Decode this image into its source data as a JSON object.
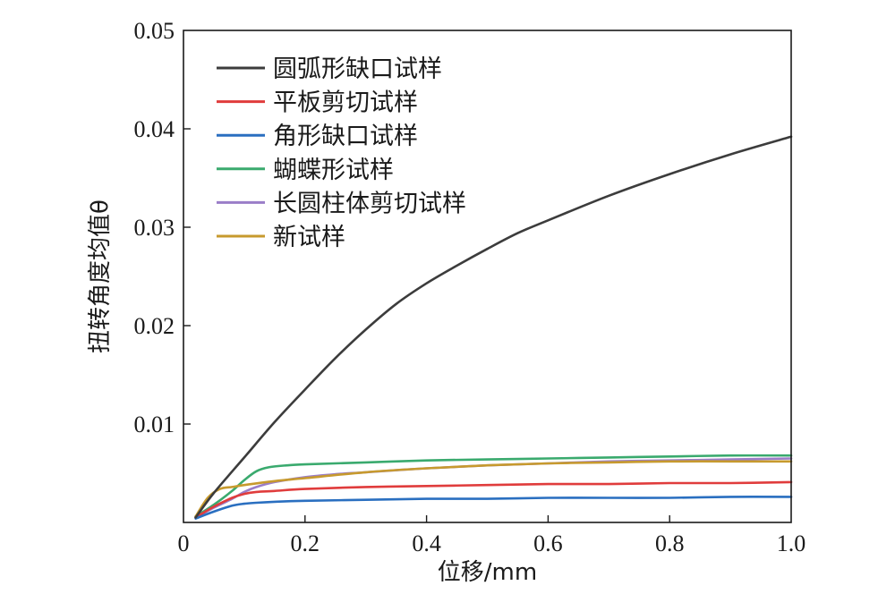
{
  "chart_data": {
    "type": "line",
    "title": "",
    "xlabel": "位移/mm",
    "ylabel": "扭转角度均值θ",
    "xlim": [
      0,
      1.0
    ],
    "ylim": [
      0,
      0.05
    ],
    "xticks": [
      0,
      0.2,
      0.4,
      0.6,
      0.8,
      1.0
    ],
    "xtick_labels": [
      "0",
      "0.2",
      "0.4",
      "0.6",
      "0.8",
      "1.0"
    ],
    "yticks": [
      0.01,
      0.02,
      0.03,
      0.04,
      0.05
    ],
    "ytick_labels": [
      "0.01",
      "0.02",
      "0.03",
      "0.04",
      "0.05"
    ],
    "grid": false,
    "legend_position": "top-left",
    "series": [
      {
        "name": "圆弧形缺口试样",
        "color": "#3c3c3c",
        "x": [
          0.02,
          0.05,
          0.1,
          0.15,
          0.2,
          0.25,
          0.3,
          0.35,
          0.4,
          0.45,
          0.5,
          0.55,
          0.6,
          0.7,
          0.8,
          0.9,
          1.0
        ],
        "y": [
          0.0005,
          0.003,
          0.0066,
          0.0102,
          0.0135,
          0.0167,
          0.0196,
          0.0222,
          0.0243,
          0.0261,
          0.0278,
          0.0294,
          0.0307,
          0.0332,
          0.0354,
          0.0374,
          0.0392
        ]
      },
      {
        "name": "平板剪切试样",
        "color": "#e03c3c",
        "x": [
          0.02,
          0.05,
          0.08,
          0.1,
          0.12,
          0.15,
          0.2,
          0.3,
          0.4,
          0.5,
          0.6,
          0.7,
          0.8,
          0.9,
          1.0
        ],
        "y": [
          0.0005,
          0.0016,
          0.0025,
          0.0029,
          0.0031,
          0.0032,
          0.0034,
          0.0036,
          0.0037,
          0.0038,
          0.0039,
          0.0039,
          0.004,
          0.004,
          0.0041
        ]
      },
      {
        "name": "角形缺口试样",
        "color": "#2a6fc0",
        "x": [
          0.02,
          0.05,
          0.08,
          0.1,
          0.12,
          0.15,
          0.2,
          0.3,
          0.4,
          0.5,
          0.6,
          0.7,
          0.8,
          0.9,
          1.0
        ],
        "y": [
          0.0004,
          0.0011,
          0.0017,
          0.0019,
          0.002,
          0.0021,
          0.0022,
          0.0023,
          0.0024,
          0.0024,
          0.0025,
          0.0025,
          0.0025,
          0.0026,
          0.0026
        ]
      },
      {
        "name": "蝴蝶形试样",
        "color": "#3aaa6e",
        "x": [
          0.02,
          0.05,
          0.08,
          0.1,
          0.12,
          0.14,
          0.17,
          0.2,
          0.3,
          0.4,
          0.5,
          0.6,
          0.7,
          0.8,
          0.9,
          1.0
        ],
        "y": [
          0.0006,
          0.0018,
          0.0032,
          0.0043,
          0.0052,
          0.0056,
          0.0058,
          0.0059,
          0.0061,
          0.0063,
          0.0064,
          0.0065,
          0.0066,
          0.0067,
          0.0068,
          0.0068
        ]
      },
      {
        "name": "长圆柱体剪切试样",
        "color": "#9a7dc8",
        "x": [
          0.02,
          0.05,
          0.08,
          0.1,
          0.12,
          0.15,
          0.2,
          0.25,
          0.3,
          0.4,
          0.5,
          0.6,
          0.7,
          0.8,
          0.9,
          1.0
        ],
        "y": [
          0.0005,
          0.0015,
          0.0024,
          0.0031,
          0.0036,
          0.0041,
          0.0046,
          0.0049,
          0.0051,
          0.0055,
          0.0058,
          0.006,
          0.0062,
          0.0063,
          0.0064,
          0.0065
        ]
      },
      {
        "name": "新试样",
        "color": "#c79a2e",
        "x": [
          0.02,
          0.04,
          0.06,
          0.08,
          0.1,
          0.15,
          0.2,
          0.3,
          0.4,
          0.5,
          0.6,
          0.7,
          0.8,
          0.9,
          1.0
        ],
        "y": [
          0.0006,
          0.0025,
          0.0034,
          0.0036,
          0.0038,
          0.0042,
          0.0045,
          0.0051,
          0.0055,
          0.0058,
          0.006,
          0.0061,
          0.0062,
          0.0062,
          0.0062
        ]
      }
    ]
  }
}
